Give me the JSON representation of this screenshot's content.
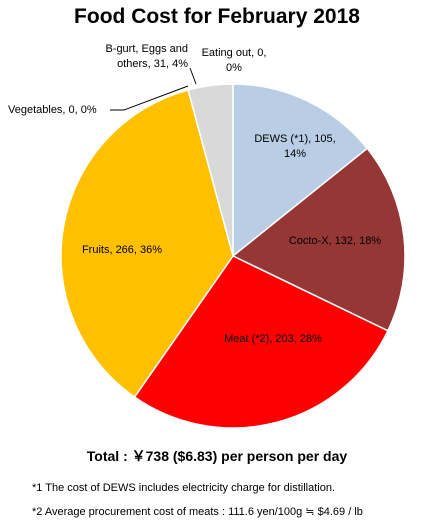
{
  "chart_data": {
    "type": "pie",
    "title": "Food Cost for February 2018",
    "slices": [
      {
        "label": "DEWS (*1)",
        "value": 105,
        "percent": "14%",
        "color": "#b9cde5"
      },
      {
        "label": "Cocto-X",
        "value": 132,
        "percent": "18%",
        "color": "#953735"
      },
      {
        "label": "Meat (*2)",
        "value": 203,
        "percent": "28%",
        "color": "#ff0000"
      },
      {
        "label": "Fruits",
        "value": 266,
        "percent": "36%",
        "color": "#ffc000"
      },
      {
        "label": "Vegetables",
        "value": 0,
        "percent": "0%",
        "color": "#70ad47"
      },
      {
        "label": "B-gurt, Eggs and others",
        "value": 31,
        "percent": "4%",
        "color": "#d9d9d9"
      },
      {
        "label": "Eating out",
        "value": 0,
        "percent": "0%",
        "color": "#4472c4"
      }
    ]
  },
  "labels": {
    "dews": [
      "DEWS (*1), 105,",
      "14%"
    ],
    "cocto": [
      "Cocto-X, 132, 18%"
    ],
    "meat": [
      "Meat (*2), 203, 28%"
    ],
    "fruits": [
      "Fruits, 266, 36%"
    ],
    "vegetables": [
      "Vegetables, 0, 0%"
    ],
    "bgurt": [
      "B-gurt, Eggs and",
      "others, 31, 4%"
    ],
    "eating": [
      "Eating out, 0,",
      "0%"
    ]
  },
  "total": "Total : ￥738 ($6.83) per person per day",
  "footnotes": [
    "*1 The cost of DEWS includes electricity charge for distillation.",
    "*2 Average procurement cost of meats : 111.6 yen/100g ≒ $4.69 / lb"
  ]
}
